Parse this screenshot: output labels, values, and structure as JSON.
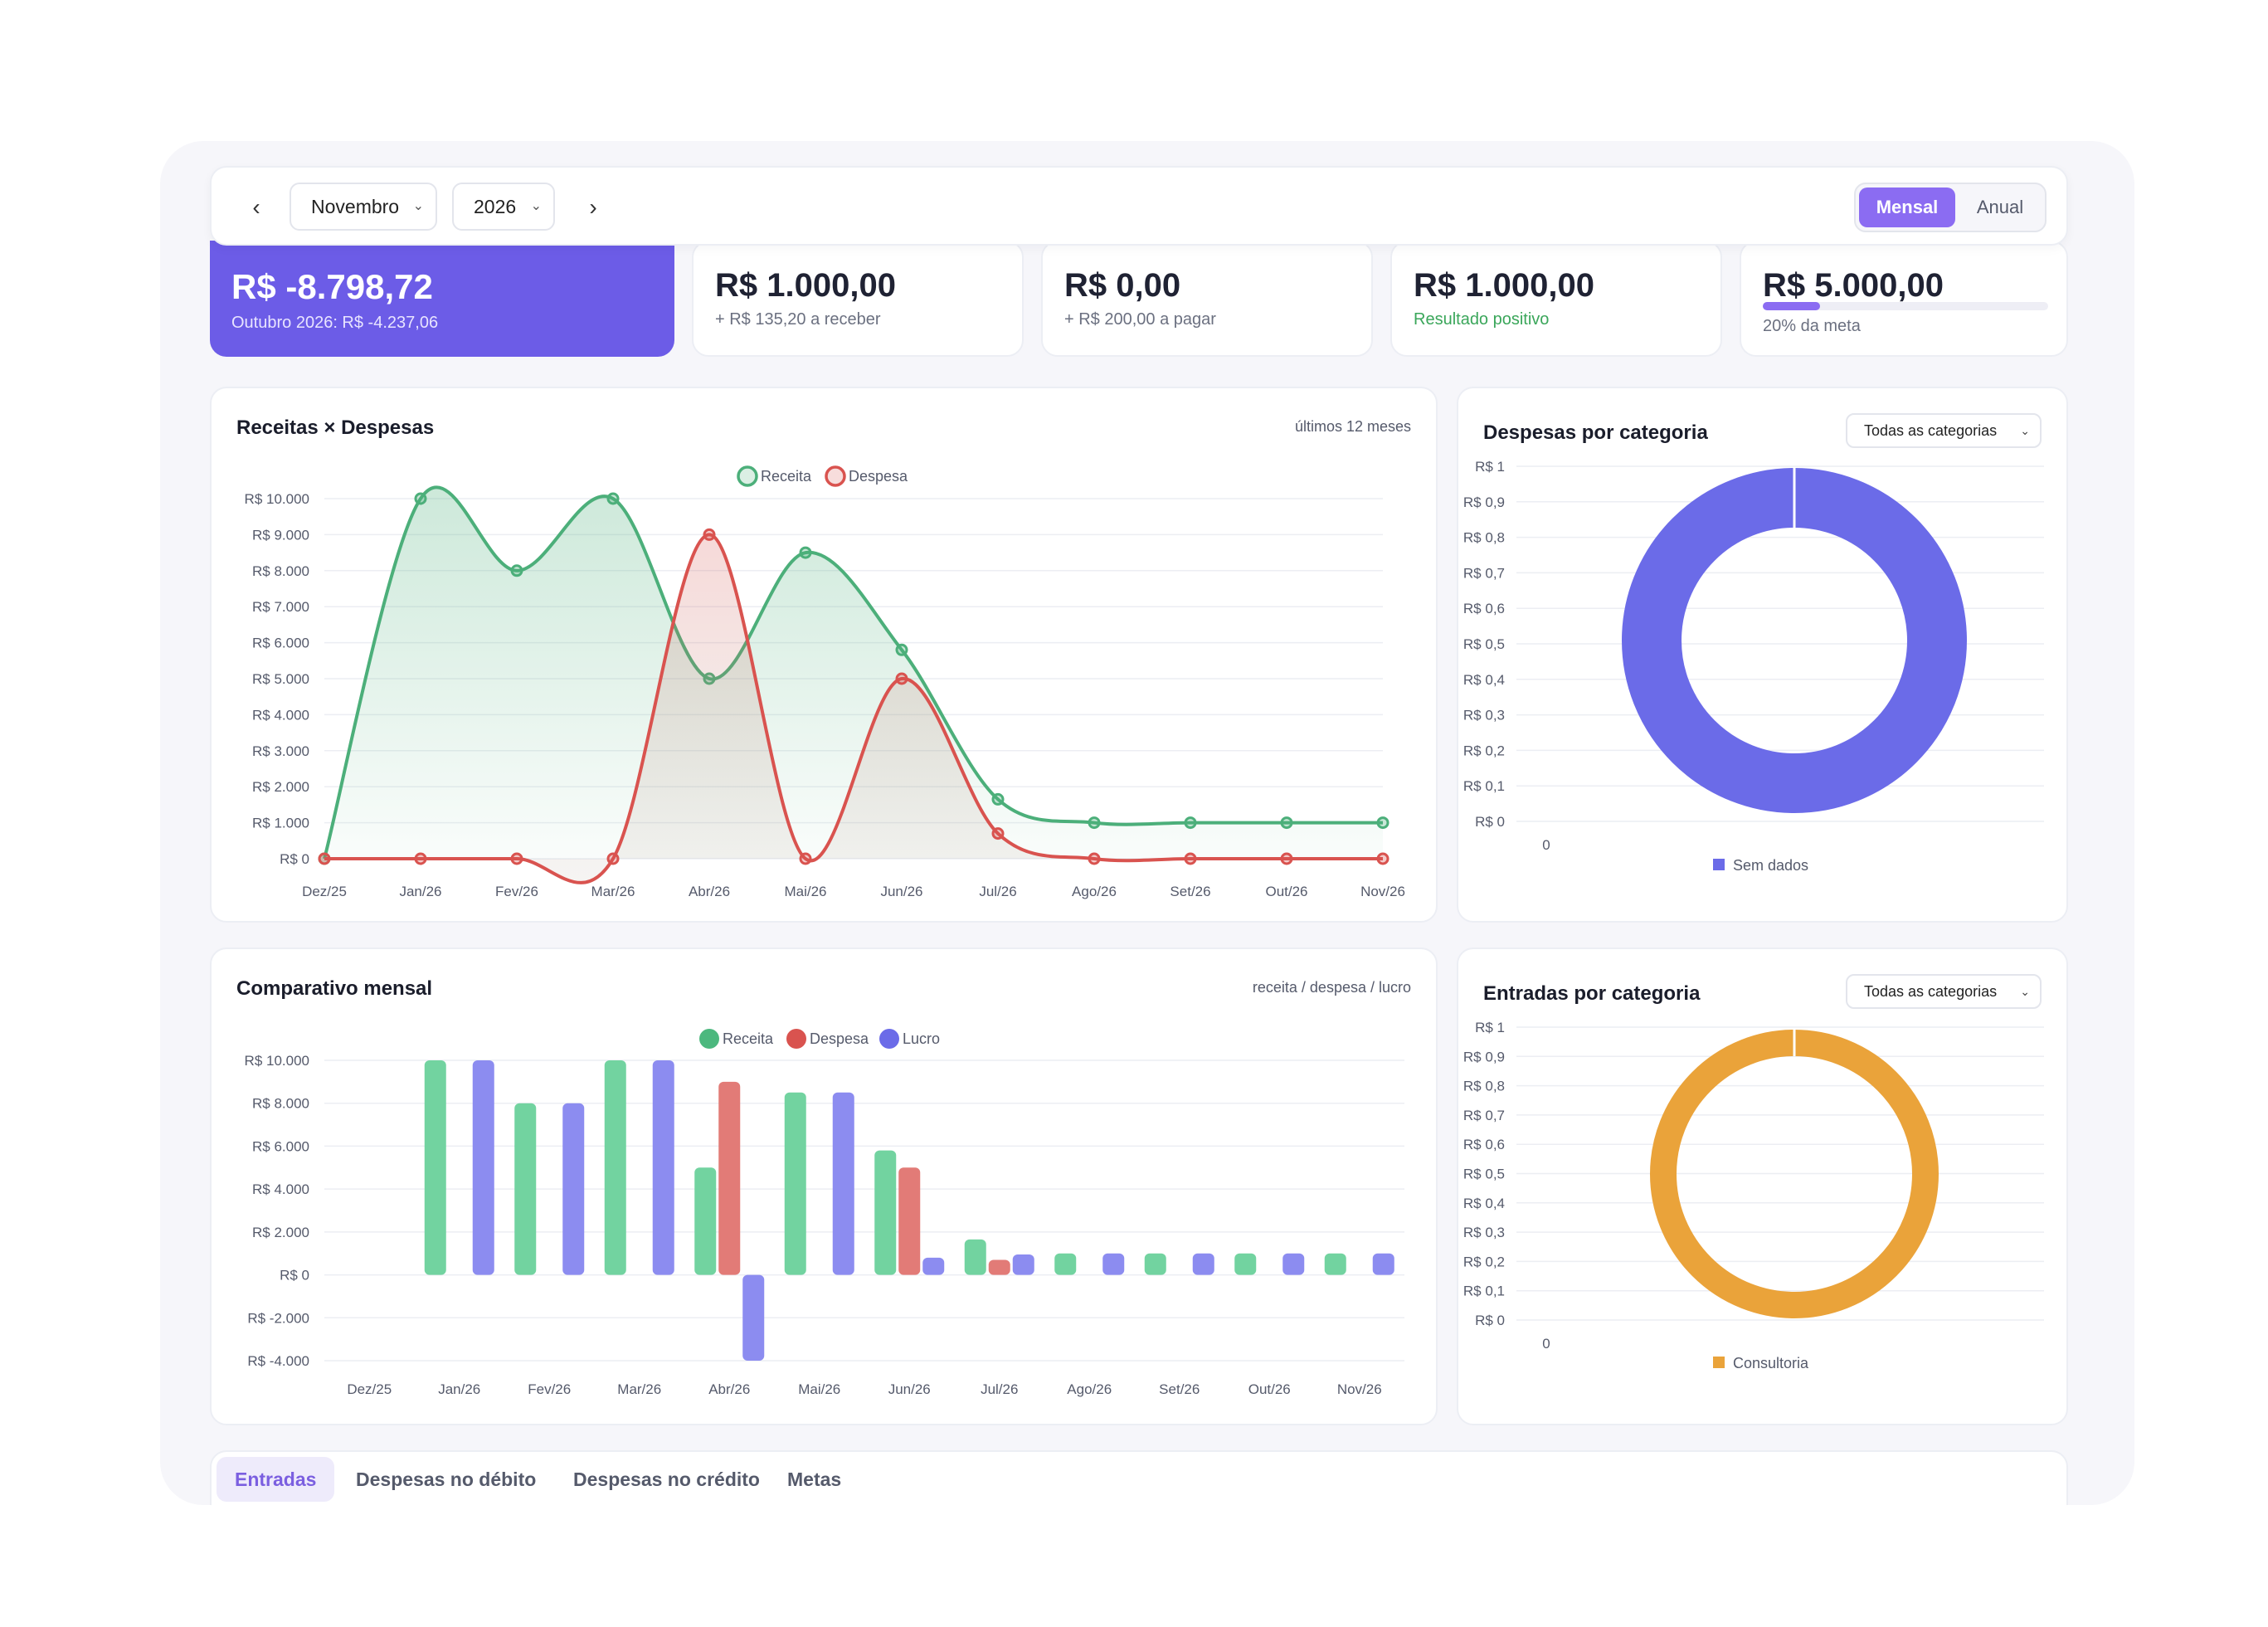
{
  "toolbar": {
    "prev_icon": "chevron-left-icon",
    "next_icon": "chevron-right-icon",
    "month": "Novembro",
    "year": "2026",
    "view_mensal": "Mensal",
    "view_anual": "Anual"
  },
  "kpis": [
    {
      "value": "R$ -8.798,72",
      "sub": "Outubro 2026: R$ -4.237,06"
    },
    {
      "value": "R$ 1.000,00",
      "sub": "+ R$ 135,20 a receber"
    },
    {
      "value": "R$ 0,00",
      "sub": "+ R$ 200,00 a pagar"
    },
    {
      "value": "R$ 1.000,00",
      "sub": "Resultado positivo"
    },
    {
      "value": "R$ 5.000,00",
      "sub": "20% da meta",
      "progress": 0.2
    }
  ],
  "colors": {
    "accent": "#8b6cf2",
    "receita": "#4caf7a",
    "despesa": "#d9534f",
    "lucro": "#6b6be8",
    "positive": "#3aa65a",
    "consultoria": "#eaa33a"
  },
  "line_panel": {
    "title": "Receitas × Despesas",
    "note": "últimos 12 meses"
  },
  "bar_panel": {
    "title": "Comparativo mensal",
    "note": "receita / despesa / lucro"
  },
  "donut_desp": {
    "title": "Despesas por categoria",
    "filter": "Todas as categorias"
  },
  "donut_ent": {
    "title": "Entradas por categoria",
    "filter": "Todas as categorias"
  },
  "tabs": [
    "Entradas",
    "Despesas no débito",
    "Despesas no crédito",
    "Metas"
  ],
  "chart_data": [
    {
      "type": "line",
      "categories": [
        "Dez/25",
        "Jan/26",
        "Fev/26",
        "Mar/26",
        "Abr/26",
        "Mai/26",
        "Jun/26",
        "Jul/26",
        "Ago/26",
        "Set/26",
        "Out/26",
        "Nov/26"
      ],
      "series": [
        {
          "name": "Receita",
          "values": [
            0,
            10000,
            8000,
            10000,
            5000,
            8500,
            5800,
            1650,
            1000,
            1000,
            1000,
            1000
          ]
        },
        {
          "name": "Despesa",
          "values": [
            0,
            0,
            0,
            0,
            9000,
            0,
            5000,
            700,
            0,
            0,
            0,
            0
          ]
        }
      ],
      "y_ticks": [
        "R$ 0",
        "R$ 1.000",
        "R$ 2.000",
        "R$ 3.000",
        "R$ 4.000",
        "R$ 5.000",
        "R$ 6.000",
        "R$ 7.000",
        "R$ 8.000",
        "R$ 9.000",
        "R$ 10.000"
      ],
      "ylim": [
        0,
        10000
      ],
      "legend": "top-center"
    },
    {
      "type": "bar",
      "categories": [
        "Dez/25",
        "Jan/26",
        "Fev/26",
        "Mar/26",
        "Abr/26",
        "Mai/26",
        "Jun/26",
        "Jul/26",
        "Ago/26",
        "Set/26",
        "Out/26",
        "Nov/26"
      ],
      "series": [
        {
          "name": "Receita",
          "values": [
            0,
            10000,
            8000,
            10000,
            5000,
            8500,
            5800,
            1650,
            1000,
            1000,
            1000,
            1000
          ]
        },
        {
          "name": "Despesa",
          "values": [
            0,
            0,
            0,
            0,
            9000,
            0,
            5000,
            700,
            0,
            0,
            0,
            0
          ]
        },
        {
          "name": "Lucro",
          "values": [
            0,
            10000,
            8000,
            10000,
            -4000,
            8500,
            800,
            950,
            1000,
            1000,
            1000,
            1000
          ]
        }
      ],
      "y_ticks": [
        "R$ -4.000",
        "R$ -2.000",
        "R$ 0",
        "R$ 2.000",
        "R$ 4.000",
        "R$ 6.000",
        "R$ 8.000",
        "R$ 10.000"
      ],
      "ylim": [
        -4000,
        10000
      ],
      "legend": "top-center"
    },
    {
      "type": "pie",
      "labels": [
        "Sem dados"
      ],
      "values": [
        1
      ],
      "y_ticks": [
        "R$ 0",
        "R$ 0,1",
        "R$ 0,2",
        "R$ 0,3",
        "R$ 0,4",
        "R$ 0,5",
        "R$ 0,6",
        "R$ 0,7",
        "R$ 0,8",
        "R$ 0,9",
        "R$ 1"
      ],
      "x_tick": "0",
      "legend": "bottom"
    },
    {
      "type": "pie",
      "labels": [
        "Consultoria"
      ],
      "values": [
        1
      ],
      "y_ticks": [
        "R$ 0",
        "R$ 0,1",
        "R$ 0,2",
        "R$ 0,3",
        "R$ 0,4",
        "R$ 0,5",
        "R$ 0,6",
        "R$ 0,7",
        "R$ 0,8",
        "R$ 0,9",
        "R$ 1"
      ],
      "x_tick": "0",
      "legend": "bottom"
    }
  ]
}
